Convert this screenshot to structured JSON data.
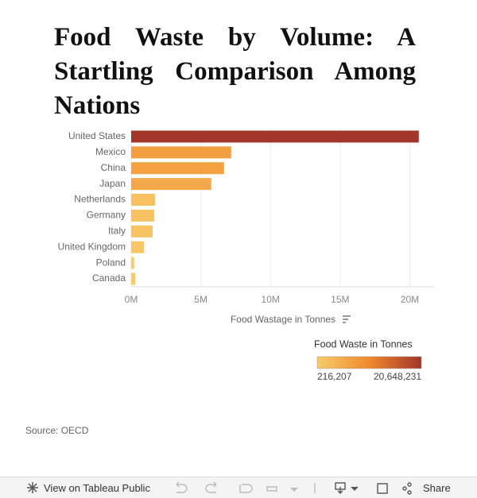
{
  "chart_data": {
    "type": "bar",
    "orientation": "horizontal",
    "title": "Food Waste by Volume: A Startling Comparison Among Nations",
    "categories": [
      "United States",
      "Mexico",
      "China",
      "Japan",
      "Netherlands",
      "Germany",
      "Italy",
      "United Kingdom",
      "Poland",
      "Canada"
    ],
    "values": [
      20648231,
      7180000,
      6670000,
      5750000,
      1710000,
      1650000,
      1540000,
      910000,
      216207,
      300000
    ],
    "xlim": [
      0,
      21800000
    ],
    "xticks": [
      {
        "value": 0,
        "label": "0M"
      },
      {
        "value": 5000000,
        "label": "5M"
      },
      {
        "value": 10000000,
        "label": "10M"
      },
      {
        "value": 15000000,
        "label": "15M"
      },
      {
        "value": 20000000,
        "label": "20M"
      }
    ],
    "xlabel": "Food Wastage in Tonnes",
    "grid": true,
    "color_legend": {
      "title": "Food Waste in Tonnes",
      "colors": [
        "#f8cb6b",
        "#ef8a2c",
        "#a3352a"
      ],
      "ticks": [
        {
          "value": 216207,
          "label": "216,207"
        },
        {
          "value": 20648231,
          "label": "20,648,231"
        }
      ]
    },
    "source": "Source: OECD"
  },
  "toolbar": {
    "view_label": "View on Tableau Public",
    "share_label": "Share"
  }
}
